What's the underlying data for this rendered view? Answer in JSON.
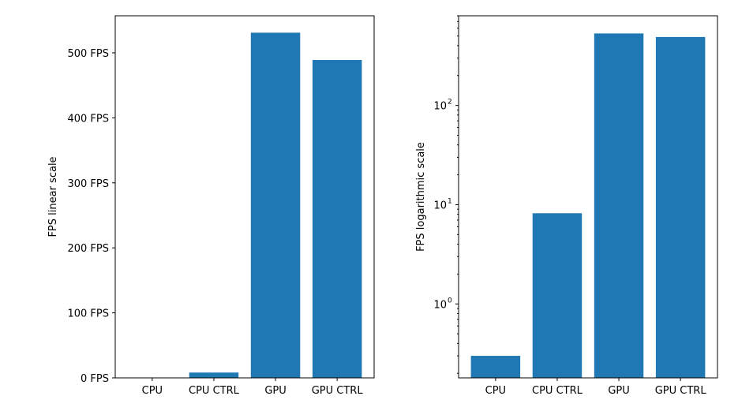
{
  "chart_data": [
    {
      "type": "bar",
      "scale": "linear",
      "categories": [
        "CPU",
        "CPU CTRL",
        "GPU",
        "GPU CTRL"
      ],
      "values": [
        0.3,
        8.2,
        531,
        489
      ],
      "ylabel": "FPS linear scale",
      "ylim": [
        0,
        557
      ],
      "yticks": [
        0,
        100,
        200,
        300,
        400,
        500
      ],
      "ytick_labels": [
        "0 FPS",
        "100 FPS",
        "200 FPS",
        "300 FPS",
        "400 FPS",
        "500 FPS"
      ],
      "bar_color": "#1f77b4",
      "grid": false
    },
    {
      "type": "bar",
      "scale": "log",
      "categories": [
        "CPU",
        "CPU CTRL",
        "GPU",
        "GPU CTRL"
      ],
      "values": [
        0.3,
        8.2,
        531,
        489
      ],
      "ylabel": "FPS logarithmic scale",
      "ylim": [
        0.18,
        800
      ],
      "yticks": [
        1,
        10,
        100
      ],
      "ytick_labels": [
        "10",
        "10",
        "10"
      ],
      "ytick_exponents": [
        "0",
        "1",
        "2"
      ],
      "bar_color": "#1f77b4",
      "grid": false
    }
  ]
}
